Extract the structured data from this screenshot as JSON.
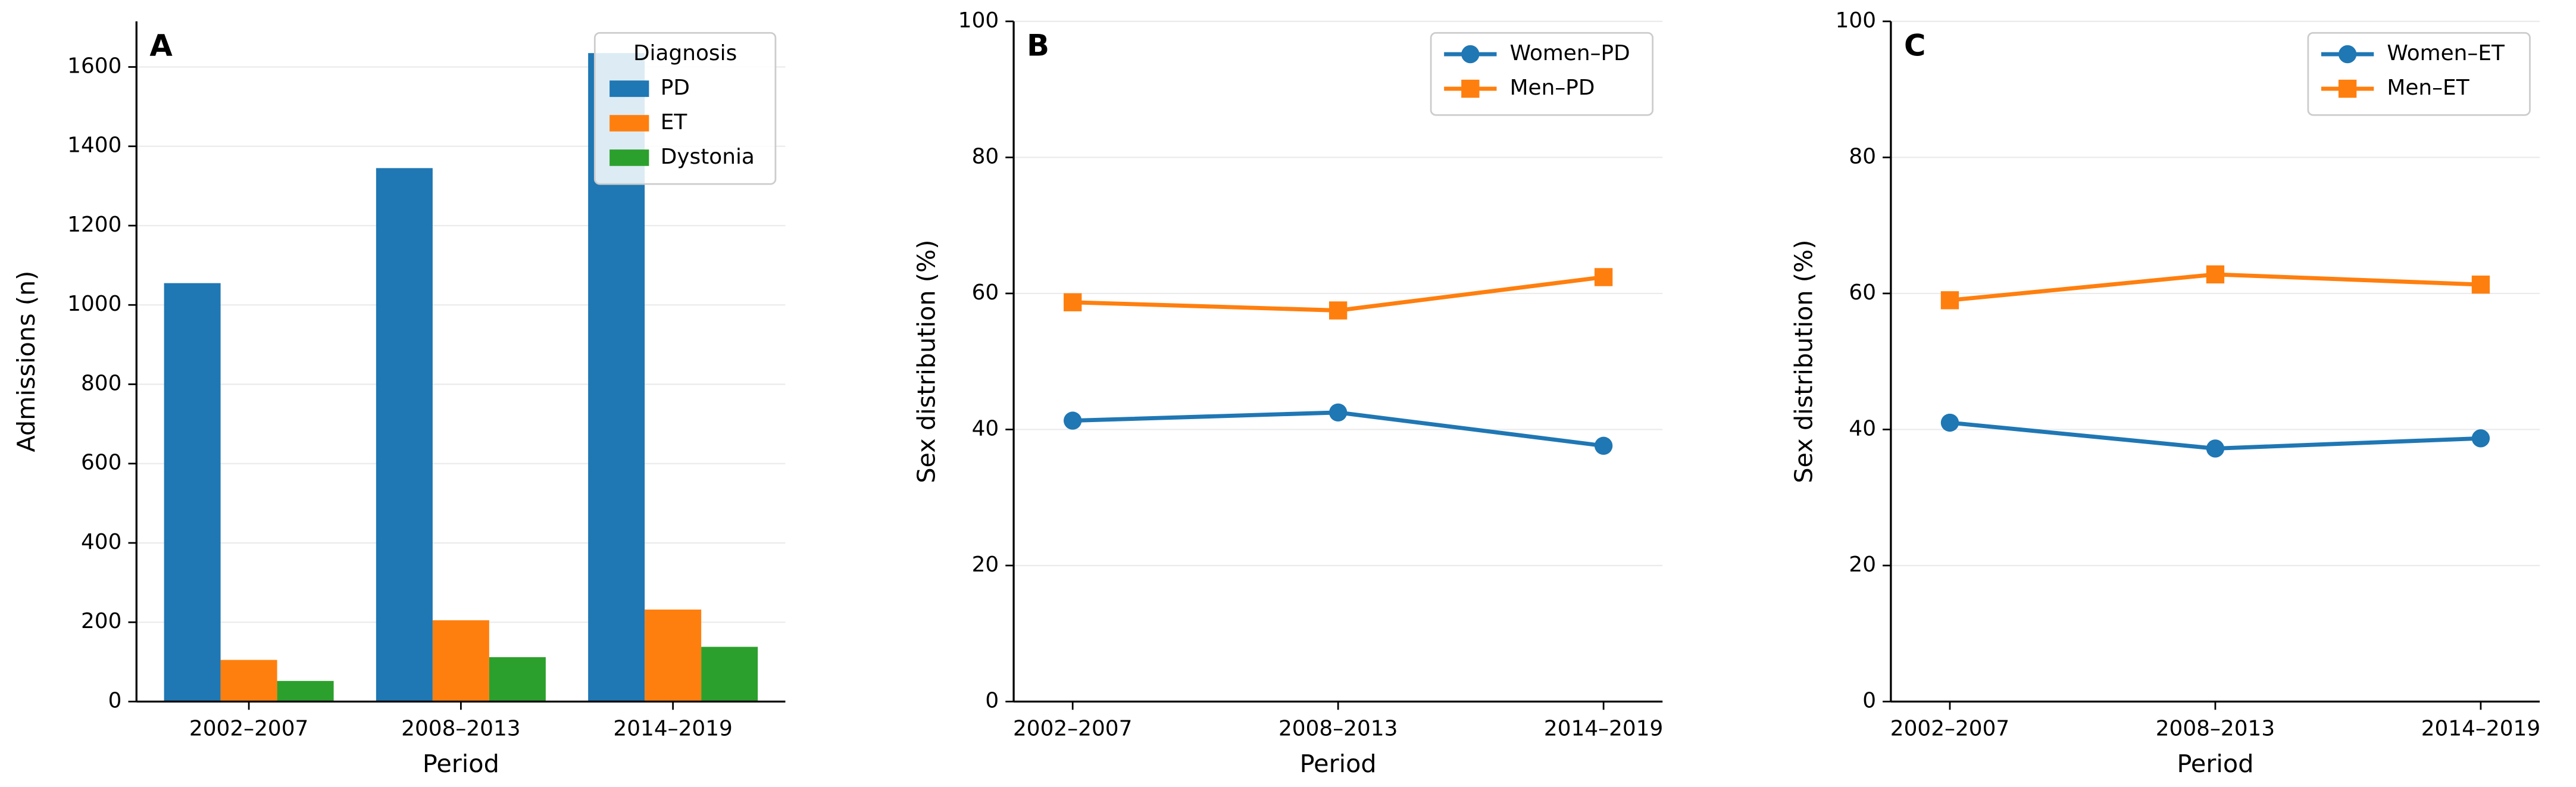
{
  "chart_data": [
    {
      "type": "bar",
      "annotation": "A",
      "xlabel": "Period",
      "ylabel": "Admissions (n)",
      "categories": [
        "2002–2007",
        "2008–2013",
        "2014–2019"
      ],
      "series": [
        {
          "name": "PD",
          "color": "#1f77b4",
          "values": [
            1055,
            1345,
            1635
          ]
        },
        {
          "name": "ET",
          "color": "#ff7f0e",
          "values": [
            105,
            205,
            232
          ]
        },
        {
          "name": "Dystonia",
          "color": "#2ca02c",
          "values": [
            52,
            112,
            138
          ]
        }
      ],
      "ylim": [
        0,
        1715
      ],
      "yticks": [
        0,
        200,
        400,
        600,
        800,
        1000,
        1200,
        1400,
        1600
      ],
      "grid": true,
      "legend": "upper right",
      "legend_title": "Diagnosis"
    },
    {
      "type": "line",
      "annotation": "B",
      "xlabel": "Period",
      "ylabel": "Sex distribution (%)",
      "categories": [
        "2002–2007",
        "2008–2013",
        "2014–2019"
      ],
      "series": [
        {
          "name": "Women–PD",
          "color": "#1f77b4",
          "marker": "circle",
          "values": [
            41.3,
            42.5,
            37.6
          ]
        },
        {
          "name": "Men–PD",
          "color": "#ff7f0e",
          "marker": "square",
          "values": [
            58.7,
            57.5,
            62.4
          ]
        }
      ],
      "ylim": [
        0,
        100
      ],
      "yticks": [
        0,
        20,
        40,
        60,
        80,
        100
      ],
      "grid": true,
      "legend": "upper right"
    },
    {
      "type": "line",
      "annotation": "C",
      "xlabel": "Period",
      "ylabel": "Sex distribution (%)",
      "categories": [
        "2002–2007",
        "2008–2013",
        "2014–2019"
      ],
      "series": [
        {
          "name": "Women–ET",
          "color": "#1f77b4",
          "marker": "circle",
          "values": [
            41.0,
            37.2,
            38.7
          ]
        },
        {
          "name": "Men–ET",
          "color": "#ff7f0e",
          "marker": "square",
          "values": [
            59.0,
            62.8,
            61.3
          ]
        }
      ],
      "ylim": [
        0,
        100
      ],
      "yticks": [
        0,
        20,
        40,
        60,
        80,
        100
      ],
      "grid": true,
      "legend": "upper right"
    }
  ]
}
